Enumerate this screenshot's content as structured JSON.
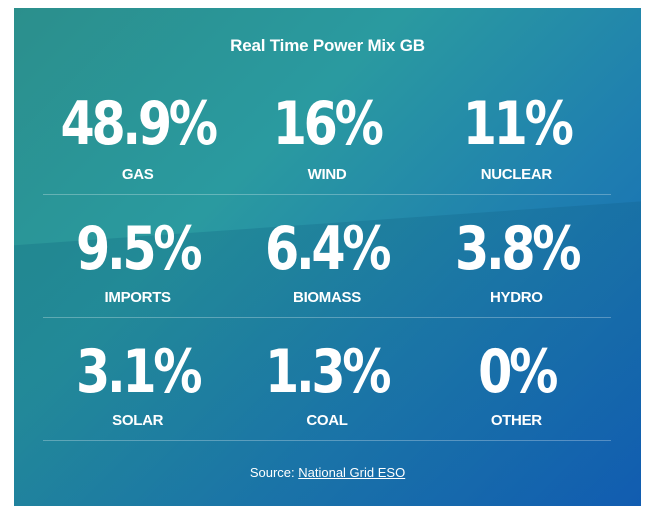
{
  "title": "Real Time Power Mix GB",
  "rows": [
    [
      {
        "value": "48.9%",
        "label": "GAS"
      },
      {
        "value": "16%",
        "label": "WIND"
      },
      {
        "value": "11%",
        "label": "NUCLEAR"
      }
    ],
    [
      {
        "value": "9.5%",
        "label": "IMPORTS"
      },
      {
        "value": "6.4%",
        "label": "BIOMASS"
      },
      {
        "value": "3.8%",
        "label": "HYDRO"
      }
    ],
    [
      {
        "value": "3.1%",
        "label": "SOLAR"
      },
      {
        "value": "1.3%",
        "label": "COAL"
      },
      {
        "value": "0%",
        "label": "OTHER"
      }
    ]
  ],
  "source": {
    "prefix": "Source:",
    "link_text": "National Grid ESO"
  },
  "colors": {
    "gradient_start": "#2b8f8c",
    "gradient_end": "#1362b8",
    "text": "#ffffff"
  }
}
